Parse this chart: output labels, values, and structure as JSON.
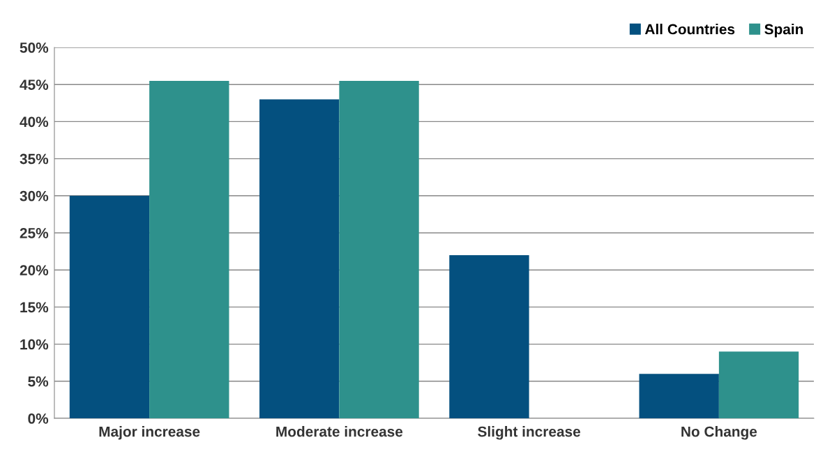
{
  "chart_data": {
    "type": "bar",
    "categories": [
      "Major increase",
      "Moderate increase",
      "Slight increase",
      "No Change"
    ],
    "series": [
      {
        "name": "All Countries",
        "color": "#04507f",
        "values": [
          30,
          43,
          22,
          6
        ]
      },
      {
        "name": "Spain",
        "color": "#2e918c",
        "values": [
          45.5,
          45.5,
          0,
          9
        ]
      }
    ],
    "ylim": [
      0,
      50
    ],
    "yticks": [
      {
        "value": 0,
        "label": "0%"
      },
      {
        "value": 5,
        "label": "5%"
      },
      {
        "value": 10,
        "label": "10%"
      },
      {
        "value": 15,
        "label": "15%"
      },
      {
        "value": 20,
        "label": "20%"
      },
      {
        "value": 25,
        "label": "25%"
      },
      {
        "value": 30,
        "label": "30%"
      },
      {
        "value": 35,
        "label": "35%"
      },
      {
        "value": 40,
        "label": "40%"
      },
      {
        "value": 45,
        "label": "45%"
      },
      {
        "value": 50,
        "label": "50%"
      }
    ],
    "grid": "y",
    "legend": "top right"
  }
}
